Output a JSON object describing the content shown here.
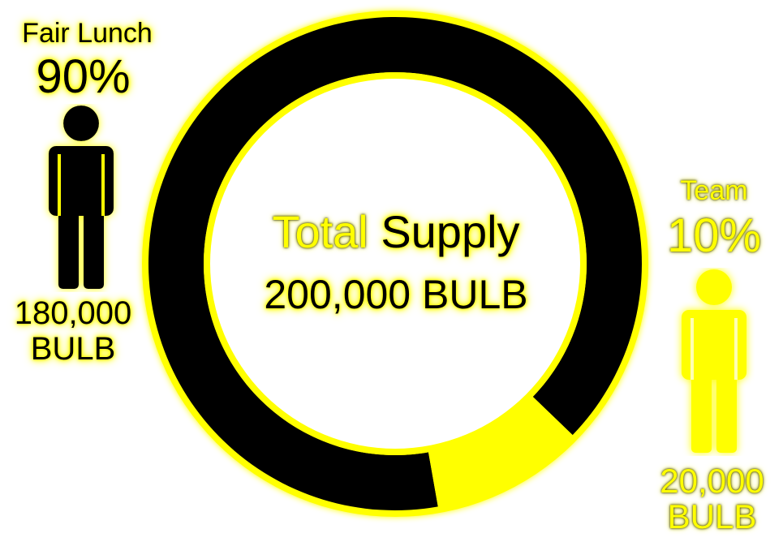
{
  "chart_data": {
    "type": "pie",
    "style": "donut",
    "title_parts": [
      "Total",
      "Supply"
    ],
    "total_label": "200,000 BULB",
    "series": [
      {
        "name": "Fair Lunch",
        "percent_label": "90%",
        "value": 180000,
        "amount_label": "180,000",
        "unit": "BULB",
        "color": "#000000"
      },
      {
        "name": "Team",
        "percent_label": "10%",
        "value": 20000,
        "amount_label": "20,000",
        "unit": "BULB",
        "color": "#ffff00"
      }
    ]
  },
  "colors": {
    "accent": "#ffff00",
    "dark": "#000000",
    "background": "#ffffff"
  },
  "icons": {
    "fair_lunch": "person-icon",
    "team": "person-icon"
  }
}
